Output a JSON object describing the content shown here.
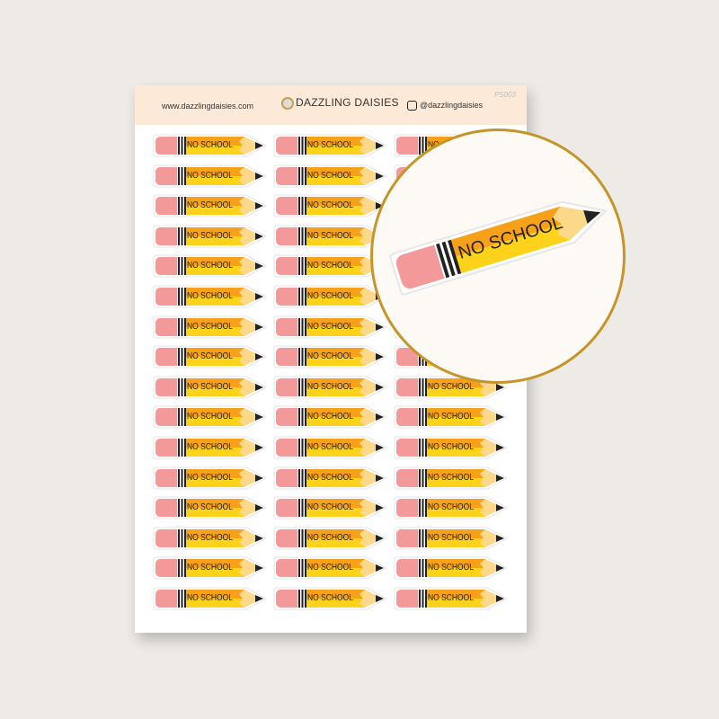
{
  "header": {
    "website": "www.dazzlingdaisies.com",
    "brand": "DAZZLING DAISIES",
    "instagram": "@dazzlingdaisies",
    "code": "PS003"
  },
  "sticker": {
    "label": "NO SCHOOL",
    "rows": 16,
    "columns": 3
  },
  "zoom": {
    "label": "NO SCHOOL"
  },
  "colors": {
    "eraser": "#f4999a",
    "body_top": "#f7a11a",
    "body_bottom": "#fdd21b",
    "accent": "#c4962a",
    "header_bg": "#fde9d8"
  }
}
